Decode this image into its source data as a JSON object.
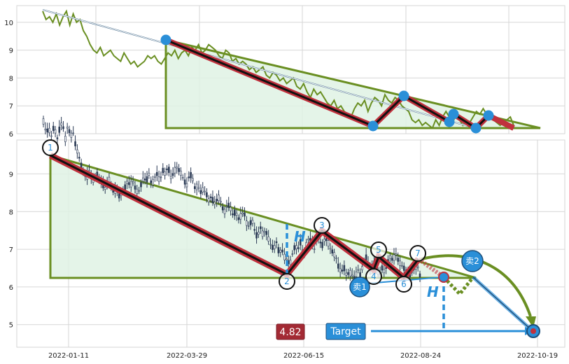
{
  "chart_data": [
    {
      "type": "line",
      "panel": "top",
      "title": "",
      "xlabel": "",
      "ylabel": "",
      "ylim": [
        6,
        10.6
      ],
      "yticks": [
        6,
        7,
        8,
        9,
        10
      ],
      "grid": true,
      "series": [
        {
          "values": [
            10.4,
            10.1,
            10.2,
            10.0,
            10.3,
            9.9,
            10.2,
            10.4,
            9.9,
            10.3,
            10.0,
            10.1,
            9.7,
            9.5,
            9.2,
            9.0,
            8.9,
            9.1,
            8.8,
            8.9,
            9.0,
            8.8,
            8.7,
            8.6,
            8.9,
            8.7,
            8.5,
            8.6,
            8.4,
            8.5,
            8.6,
            8.8,
            8.7,
            8.8,
            8.6,
            8.5,
            8.7,
            8.9,
            8.8,
            9.0,
            8.7,
            8.9,
            9.0,
            8.8,
            9.1,
            9.0,
            9.2,
            8.9,
            9.0,
            9.2,
            9.1,
            9.0,
            8.8,
            8.7,
            9.0,
            8.9,
            8.6,
            8.7,
            8.5,
            8.6,
            8.5,
            8.3,
            8.4,
            8.2,
            8.3,
            8.4,
            8.1,
            8.0,
            8.2,
            8.1,
            7.9,
            8.0,
            7.8,
            7.9,
            8.0,
            7.7,
            7.6,
            7.8,
            7.5,
            7.3,
            7.6,
            7.4,
            7.5,
            7.3,
            7.1,
            7.0,
            7.2,
            6.9,
            7.0,
            6.8,
            6.7,
            6.6,
            6.9,
            7.1,
            7.0,
            7.2,
            6.8,
            7.1,
            7.3,
            7.2,
            7.0,
            7.4,
            7.2,
            7.1,
            7.3,
            7.2,
            7.0,
            6.9,
            6.8,
            6.5,
            6.4,
            6.5,
            6.3,
            6.4,
            6.3,
            6.2,
            6.5,
            6.3,
            6.6,
            6.8,
            6.6,
            6.4,
            6.7,
            6.5,
            6.3,
            6.5,
            6.4,
            6.6,
            6.8,
            6.7,
            6.9,
            6.7,
            6.6,
            6.5,
            6.4,
            6.3,
            6.4,
            6.5,
            6.6,
            6.3
          ]
        }
      ],
      "pivot_points": [
        [
          3,
          9.38
        ],
        [
          9.8,
          6.28
        ],
        [
          10.9,
          7.35
        ],
        [
          11.8,
          6.4
        ],
        [
          12.05,
          6.7
        ],
        [
          12.6,
          6.2
        ],
        [
          12.9,
          6.65
        ]
      ],
      "triangle": {
        "apex_left": [
          3,
          9.38
        ],
        "right": [
          14,
          6.2
        ]
      }
    },
    {
      "type": "candlestick",
      "panel": "bottom",
      "title": "",
      "xlabel": "",
      "ylabel": "",
      "ylim": [
        4.4,
        9.9
      ],
      "yticks": [
        5,
        6,
        7,
        8,
        9
      ],
      "grid": true,
      "x_ticks": [
        "2022-01-11",
        "2022-03-29",
        "2022-06-15",
        "2022-08-24",
        "2022-10-19"
      ],
      "pivots": [
        {
          "label": "1",
          "x": 0.0,
          "y": 9.4
        },
        {
          "label": "2",
          "x": 9.85,
          "y": 6.3
        },
        {
          "label": "3",
          "x": 11.0,
          "y": 7.4
        },
        {
          "label": "4",
          "x": 12.05,
          "y": 6.25
        },
        {
          "label": "5",
          "x": 12.2,
          "y": 6.75
        },
        {
          "label": "6",
          "x": 12.9,
          "y": 6.05
        },
        {
          "label": "7",
          "x": 13.3,
          "y": 6.8
        }
      ],
      "sell_labels": [
        "卖1",
        "卖2"
      ],
      "h_label": "H",
      "target_value": "4.82",
      "target_label": "Target"
    }
  ]
}
